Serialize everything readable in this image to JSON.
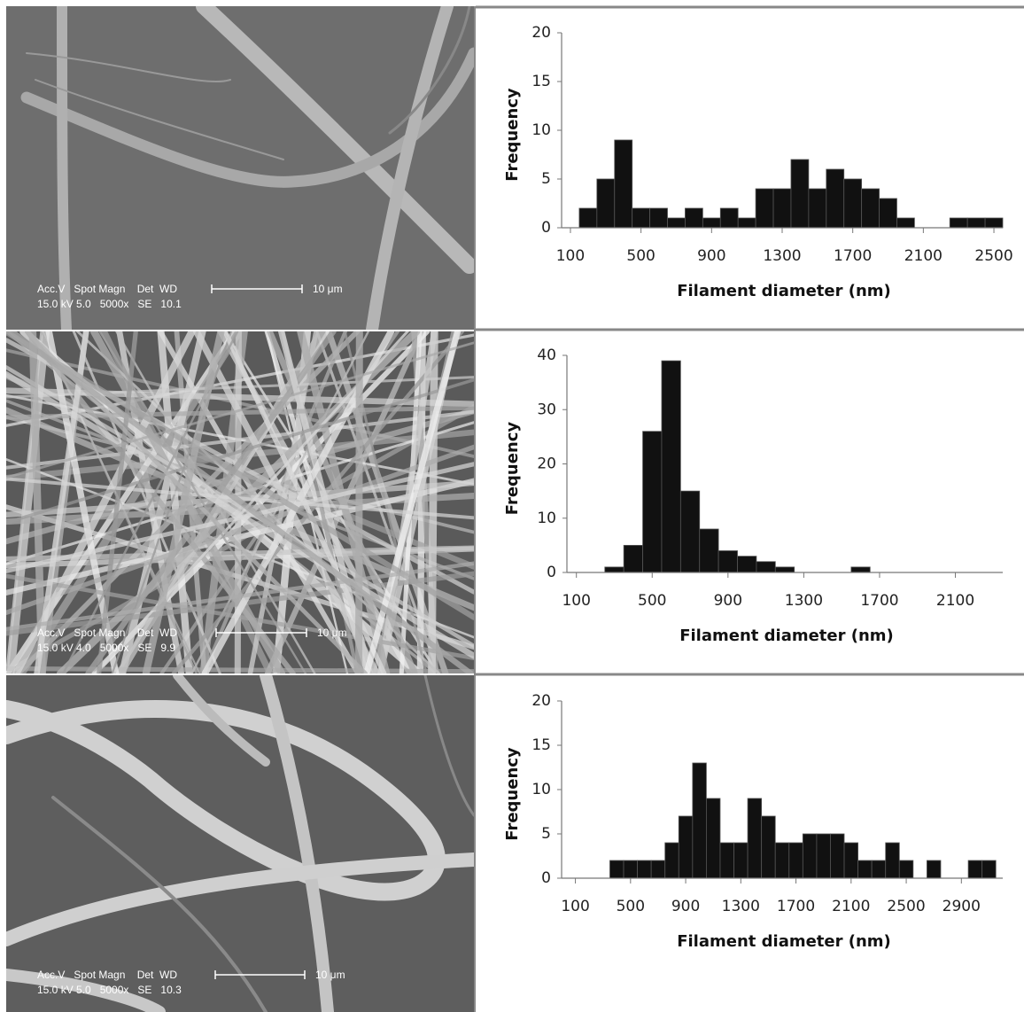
{
  "images": [
    {
      "label_top": "Acc.V   Spot Magn    Det  WD",
      "label_bottom": "15.0 kV 5.0   5000x   SE   10.1",
      "scale": "10 μm"
    },
    {
      "label_top": "Acc.V   Spot Magn    Det  WD",
      "label_bottom": "15.0 kV 4.0   5000x   SE   9.9",
      "scale": "10 μm"
    },
    {
      "label_top": "Acc.V   Spot Magn    Det  WD",
      "label_bottom": "15.0 kV 5.0   5000x   SE   10.3",
      "scale": "10 μm"
    }
  ],
  "chart_data": [
    {
      "type": "histogram",
      "x_label": "Filament diameter (nm)",
      "y_label": "Frequency",
      "color": "#111111",
      "bins": [
        150,
        250,
        350,
        450,
        550,
        650,
        750,
        850,
        950,
        1050,
        1150,
        1250,
        1350,
        1450,
        1550,
        1650,
        1750,
        1850,
        1950,
        2050,
        2150,
        2250,
        2350,
        2450,
        2550
      ],
      "values": [
        2,
        5,
        9,
        2,
        2,
        1,
        2,
        1,
        2,
        1,
        4,
        4,
        7,
        4,
        6,
        5,
        4,
        3,
        1,
        0,
        0,
        1,
        1,
        1
      ],
      "xlim": [
        50,
        2550
      ],
      "xticks": [
        100,
        500,
        900,
        1300,
        1700,
        2100,
        2500
      ],
      "ylim": [
        0,
        20
      ],
      "yticks": [
        0,
        5,
        10,
        15,
        20
      ]
    },
    {
      "type": "histogram",
      "x_label": "Filament diameter (nm)",
      "y_label": "Frequency",
      "color": "#111111",
      "bins": [
        250,
        350,
        450,
        550,
        650,
        750,
        850,
        950,
        1050,
        1150,
        1250,
        1350,
        1450,
        1550,
        1650
      ],
      "values": [
        1,
        5,
        26,
        39,
        15,
        8,
        4,
        3,
        2,
        1,
        0,
        0,
        0,
        1
      ],
      "xlim": [
        50,
        2350
      ],
      "xticks": [
        100,
        500,
        900,
        1300,
        1700,
        2100
      ],
      "ylim": [
        0,
        40
      ],
      "yticks": [
        0,
        10,
        20,
        30,
        40
      ]
    },
    {
      "type": "histogram",
      "x_label": "Filament diameter (nm)",
      "y_label": "Frequency",
      "color": "#111111",
      "bins": [
        350,
        450,
        550,
        650,
        750,
        850,
        950,
        1050,
        1150,
        1250,
        1350,
        1450,
        1550,
        1650,
        1750,
        1850,
        1950,
        2050,
        2150,
        2250,
        2350,
        2450,
        2550,
        2650,
        2750,
        2850,
        2950,
        3050,
        3150
      ],
      "values": [
        2,
        2,
        2,
        2,
        4,
        7,
        13,
        9,
        4,
        4,
        9,
        7,
        4,
        4,
        5,
        5,
        5,
        4,
        2,
        2,
        4,
        2,
        0,
        2,
        0,
        0,
        2,
        2
      ],
      "xlim": [
        0,
        3200
      ],
      "xticks": [
        100,
        500,
        900,
        1300,
        1700,
        2100,
        2500,
        2900
      ],
      "ylim": [
        0,
        20
      ],
      "yticks": [
        0,
        5,
        10,
        15,
        20
      ]
    }
  ]
}
